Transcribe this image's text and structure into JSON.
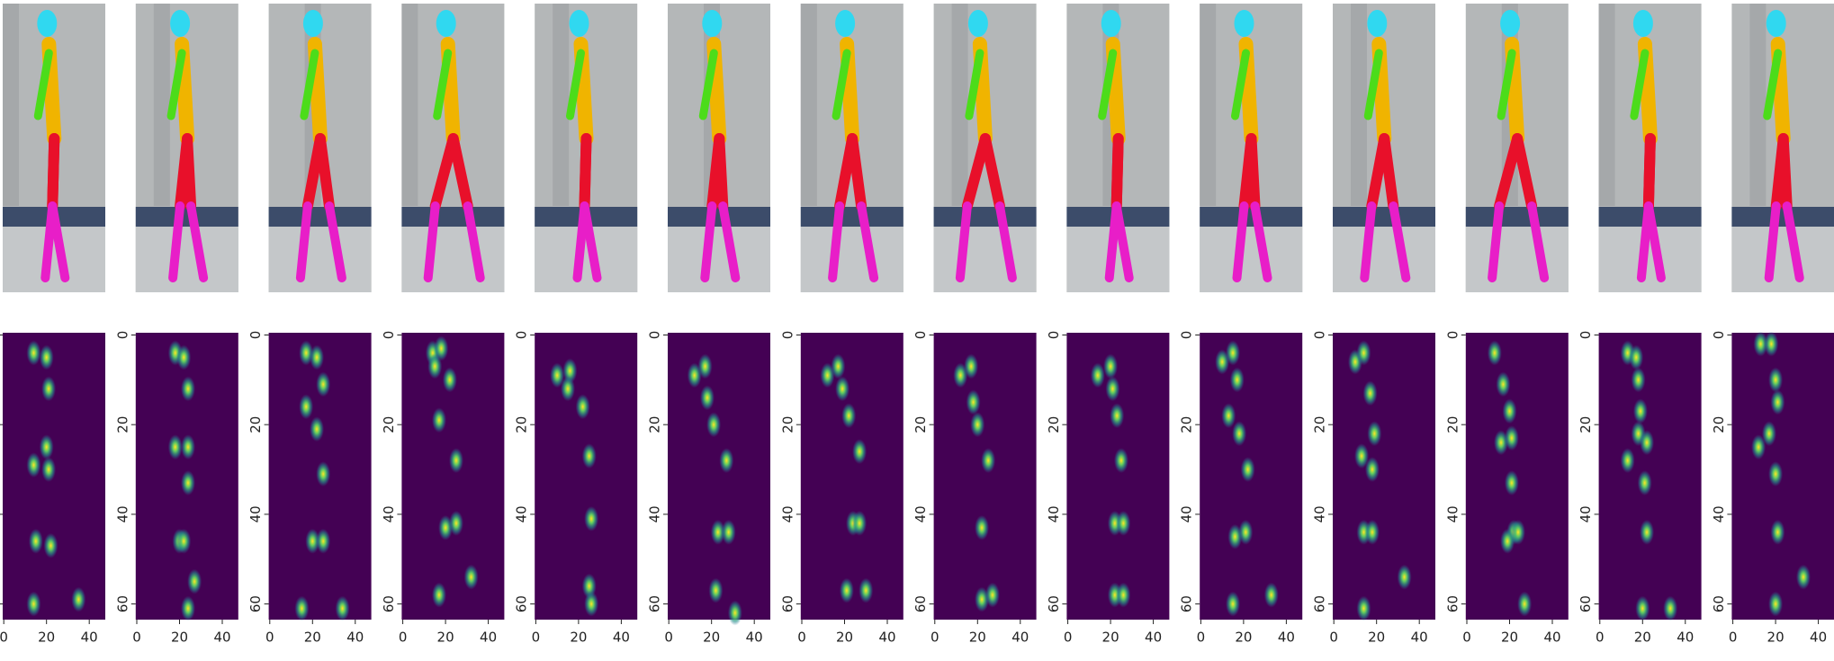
{
  "heatmap_axes": {
    "xlim": [
      -0.5,
      47.5
    ],
    "ylim": [
      -0.5,
      63.5
    ],
    "xticks": [
      0,
      20,
      40
    ],
    "yticks": [
      0,
      20,
      40,
      60
    ]
  },
  "frames": [
    {
      "keypoints": [
        [
          14,
          4
        ],
        [
          20,
          5
        ],
        [
          21,
          12
        ],
        [
          20,
          25
        ],
        [
          14,
          29
        ],
        [
          21,
          30
        ],
        [
          15,
          46
        ],
        [
          22,
          47
        ],
        [
          14,
          60
        ],
        [
          35,
          59
        ]
      ]
    },
    {
      "keypoints": [
        [
          18,
          4
        ],
        [
          22,
          5
        ],
        [
          24,
          12
        ],
        [
          18,
          25
        ],
        [
          24,
          25
        ],
        [
          24,
          33
        ],
        [
          20,
          46
        ],
        [
          22,
          46
        ],
        [
          27,
          55
        ],
        [
          24,
          61
        ]
      ]
    },
    {
      "keypoints": [
        [
          17,
          4
        ],
        [
          22,
          5
        ],
        [
          25,
          11
        ],
        [
          17,
          16
        ],
        [
          22,
          21
        ],
        [
          25,
          31
        ],
        [
          20,
          46
        ],
        [
          25,
          46
        ],
        [
          15,
          61
        ],
        [
          34,
          61
        ]
      ]
    },
    {
      "keypoints": [
        [
          14,
          4
        ],
        [
          18,
          3
        ],
        [
          15,
          7
        ],
        [
          22,
          10
        ],
        [
          17,
          19
        ],
        [
          25,
          28
        ],
        [
          20,
          43
        ],
        [
          25,
          42
        ],
        [
          17,
          58
        ],
        [
          32,
          54
        ]
      ]
    },
    {
      "keypoints": [
        [
          10,
          9
        ],
        [
          16,
          8
        ],
        [
          15,
          12
        ],
        [
          22,
          16
        ],
        [
          25,
          27
        ],
        [
          26,
          41
        ],
        [
          25,
          56
        ],
        [
          26,
          60
        ]
      ]
    },
    {
      "keypoints": [
        [
          12,
          9
        ],
        [
          17,
          7
        ],
        [
          18,
          14
        ],
        [
          21,
          20
        ],
        [
          27,
          28
        ],
        [
          23,
          44
        ],
        [
          28,
          44
        ],
        [
          22,
          57
        ],
        [
          31,
          62
        ]
      ]
    },
    {
      "keypoints": [
        [
          12,
          9
        ],
        [
          17,
          7
        ],
        [
          19,
          12
        ],
        [
          22,
          18
        ],
        [
          27,
          26
        ],
        [
          24,
          42
        ],
        [
          27,
          42
        ],
        [
          21,
          57
        ],
        [
          30,
          57
        ]
      ]
    },
    {
      "keypoints": [
        [
          12,
          9
        ],
        [
          17,
          7
        ],
        [
          18,
          15
        ],
        [
          20,
          20
        ],
        [
          25,
          28
        ],
        [
          22,
          43
        ],
        [
          22,
          59
        ],
        [
          27,
          58
        ]
      ]
    },
    {
      "keypoints": [
        [
          14,
          9
        ],
        [
          20,
          7
        ],
        [
          21,
          12
        ],
        [
          23,
          18
        ],
        [
          25,
          28
        ],
        [
          22,
          42
        ],
        [
          26,
          42
        ],
        [
          22,
          58
        ],
        [
          26,
          58
        ]
      ]
    },
    {
      "keypoints": [
        [
          10,
          6
        ],
        [
          15,
          4
        ],
        [
          17,
          10
        ],
        [
          13,
          18
        ],
        [
          18,
          22
        ],
        [
          22,
          30
        ],
        [
          16,
          45
        ],
        [
          21,
          44
        ],
        [
          15,
          60
        ],
        [
          33,
          58
        ]
      ]
    },
    {
      "keypoints": [
        [
          10,
          6
        ],
        [
          14,
          4
        ],
        [
          17,
          13
        ],
        [
          19,
          22
        ],
        [
          13,
          27
        ],
        [
          18,
          30
        ],
        [
          14,
          44
        ],
        [
          18,
          44
        ],
        [
          14,
          61
        ],
        [
          33,
          54
        ]
      ]
    },
    {
      "keypoints": [
        [
          13,
          4
        ],
        [
          17,
          11
        ],
        [
          20,
          17
        ],
        [
          16,
          24
        ],
        [
          21,
          23
        ],
        [
          21,
          33
        ],
        [
          22,
          44
        ],
        [
          24,
          44
        ],
        [
          19,
          46
        ],
        [
          27,
          60
        ]
      ]
    },
    {
      "keypoints": [
        [
          13,
          4
        ],
        [
          17,
          5
        ],
        [
          18,
          10
        ],
        [
          19,
          17
        ],
        [
          18,
          22
        ],
        [
          13,
          28
        ],
        [
          22,
          24
        ],
        [
          21,
          33
        ],
        [
          22,
          44
        ],
        [
          20,
          61
        ],
        [
          33,
          61
        ]
      ]
    },
    {
      "keypoints": [
        [
          13,
          2
        ],
        [
          18,
          2
        ],
        [
          20,
          10
        ],
        [
          21,
          15
        ],
        [
          17,
          22
        ],
        [
          12,
          25
        ],
        [
          20,
          31
        ],
        [
          21,
          44
        ],
        [
          20,
          60
        ],
        [
          33,
          54
        ]
      ]
    }
  ]
}
